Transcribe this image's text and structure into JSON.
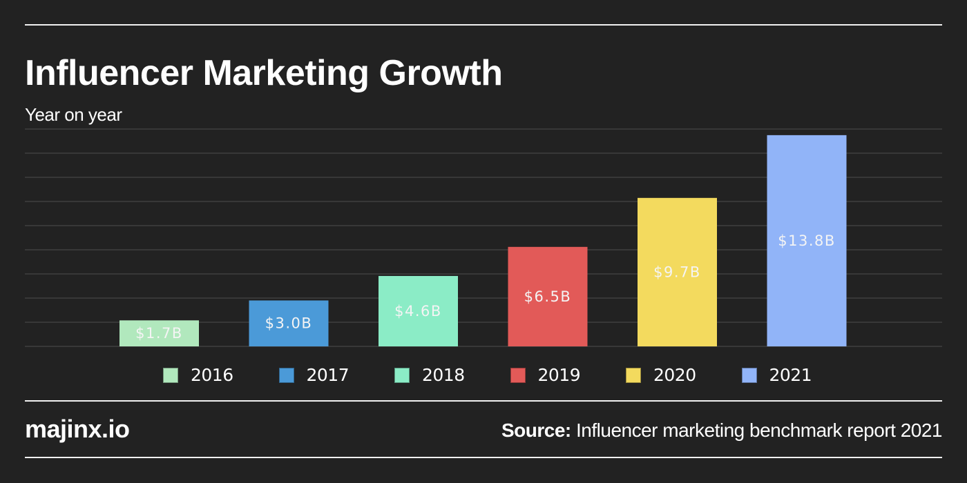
{
  "header": {
    "title": "Influencer Marketing Growth",
    "subtitle": "Year on year"
  },
  "footer": {
    "brand": "majinx.io",
    "source_key": "Source:",
    "source_text": " Influencer marketing benchmark report 2021"
  },
  "colors": {
    "background": "#222222",
    "gridline": "#3f3f3f",
    "rule": "#f2f2f2",
    "text": "#ffffff"
  },
  "chart_data": {
    "type": "bar",
    "title": "Influencer Marketing Growth",
    "subtitle": "Year on year",
    "xlabel": "",
    "ylabel": "",
    "categories": [
      "2016",
      "2017",
      "2018",
      "2019",
      "2020",
      "2021"
    ],
    "values": [
      1.7,
      3.0,
      4.6,
      6.5,
      9.7,
      13.8
    ],
    "value_labels": [
      "$1.7B",
      "$3.0B",
      "$4.6B",
      "$6.5B",
      "$9.7B",
      "$13.8B"
    ],
    "units": "USD billions",
    "colors": [
      "#b1e8bd",
      "#4b9ad8",
      "#8becc6",
      "#e25a58",
      "#f3da5e",
      "#91b4f8"
    ],
    "ylim": [
      0,
      14
    ],
    "gridlines": 10,
    "grid": true,
    "y_ticks_visible": false,
    "legend": {
      "position": "bottom",
      "entries": [
        "2016",
        "2017",
        "2018",
        "2019",
        "2020",
        "2021"
      ]
    }
  }
}
